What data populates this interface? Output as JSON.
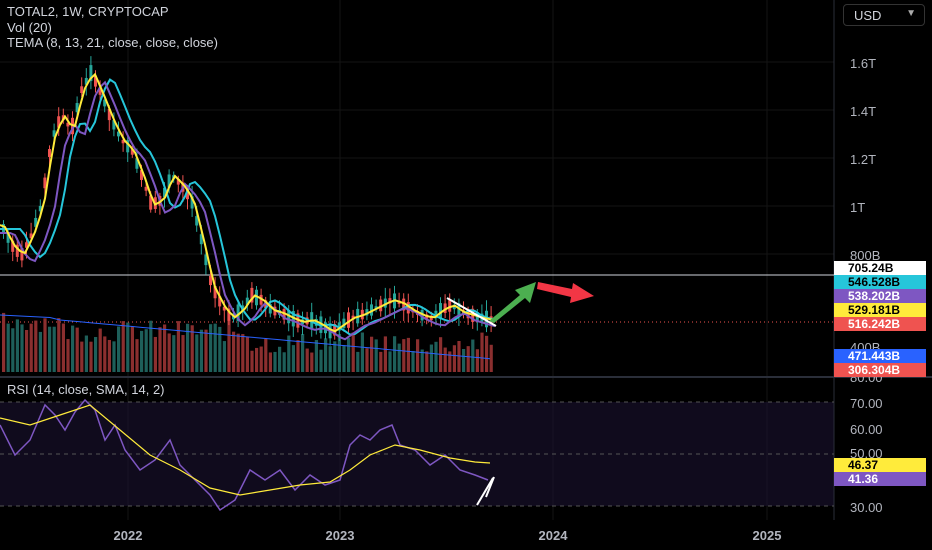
{
  "header": {
    "symbol_line": "TOTAL2, 1W, CRYPTOCAP",
    "vol_line": "Vol (20)",
    "tema_line": "TEMA (8, 13, 21, close, close, close)",
    "rsi_line": "RSI (14, close, SMA, 14, 2)"
  },
  "currency": {
    "label": "USD",
    "icon": "chevron-down-icon"
  },
  "price_axis": {
    "ticks": [
      "1.6T",
      "1.4T",
      "1.2T",
      "1T",
      "800B",
      "400B"
    ]
  },
  "rsi_axis": {
    "ticks": [
      "80.00",
      "70.00",
      "60.00",
      "50.00",
      "30.00"
    ]
  },
  "badges": {
    "price": [
      "705.24B",
      "546.528B",
      "538.202B",
      "529.181B",
      "516.242B",
      "471.443B",
      "306.304B"
    ],
    "rsi": [
      "46.37",
      "41.36"
    ]
  },
  "time_axis": {
    "labels": [
      "2022",
      "2023",
      "2024",
      "2025"
    ]
  },
  "colors": {
    "background": "#000000",
    "up_candle": "#26a69a",
    "down_candle": "#ef5350",
    "tema_fast": "#ffeb3b",
    "tema_mid": "#7e57c2",
    "tema_slow": "#26c6da",
    "rsi_line": "#7e57c2",
    "rsi_ma": "#ffeb3b",
    "arrow_up": "#4caf50",
    "arrow_down": "#f23645"
  }
}
